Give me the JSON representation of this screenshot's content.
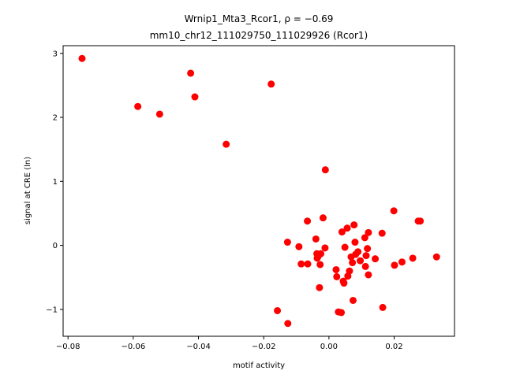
{
  "chart_data": {
    "type": "scatter",
    "title_line1": "Wrnip1_Mta3_Rcor1, ρ = −0.69",
    "title_line2": "mm10_chr12_111029750_111029926 (Rcor1)",
    "xlabel": "motif activity",
    "ylabel": "signal at CRE (ln)",
    "xlim": [
      -0.0815,
      0.0385
    ],
    "ylim": [
      -1.42,
      3.12
    ],
    "xticks": [
      -0.08,
      -0.06,
      -0.04,
      -0.02,
      0.0,
      0.02
    ],
    "xtick_labels": [
      "−0.08",
      "−0.06",
      "−0.04",
      "−0.02",
      "0.00",
      "0.02"
    ],
    "yticks": [
      -1,
      0,
      1,
      2,
      3
    ],
    "ytick_labels": [
      "−1",
      "0",
      "1",
      "2",
      "3"
    ],
    "marker_color": "#ff0000",
    "grid": false,
    "points": [
      {
        "x": -0.0757,
        "y": 2.92
      },
      {
        "x": -0.0586,
        "y": 2.17
      },
      {
        "x": -0.0519,
        "y": 2.05
      },
      {
        "x": -0.0424,
        "y": 2.69
      },
      {
        "x": -0.0411,
        "y": 2.32
      },
      {
        "x": -0.0315,
        "y": 1.58
      },
      {
        "x": -0.0177,
        "y": 2.52
      },
      {
        "x": -0.0011,
        "y": 1.18
      },
      {
        "x": -0.0158,
        "y": -1.02
      },
      {
        "x": -0.0126,
        "y": -1.22
      },
      {
        "x": -0.0127,
        "y": 0.05
      },
      {
        "x": -0.0092,
        "y": -0.02
      },
      {
        "x": -0.0085,
        "y": -0.29
      },
      {
        "x": -0.0066,
        "y": 0.38
      },
      {
        "x": -0.0065,
        "y": -0.29
      },
      {
        "x": -0.004,
        "y": 0.1
      },
      {
        "x": -0.0037,
        "y": -0.13
      },
      {
        "x": -0.0036,
        "y": -0.2
      },
      {
        "x": -0.0033,
        "y": -0.17
      },
      {
        "x": -0.0029,
        "y": -0.66
      },
      {
        "x": -0.0027,
        "y": -0.3
      },
      {
        "x": -0.0025,
        "y": -0.13
      },
      {
        "x": -0.0018,
        "y": 0.43
      },
      {
        "x": -0.0012,
        "y": -0.04
      },
      {
        "x": 0.0022,
        "y": -0.38
      },
      {
        "x": 0.0024,
        "y": -0.49
      },
      {
        "x": 0.0029,
        "y": -1.04
      },
      {
        "x": 0.0038,
        "y": -1.05
      },
      {
        "x": 0.004,
        "y": 0.21
      },
      {
        "x": 0.0044,
        "y": -0.56
      },
      {
        "x": 0.0046,
        "y": -0.59
      },
      {
        "x": 0.0049,
        "y": -0.03
      },
      {
        "x": 0.0056,
        "y": 0.27
      },
      {
        "x": 0.0058,
        "y": -0.48
      },
      {
        "x": 0.0063,
        "y": -0.4
      },
      {
        "x": 0.0068,
        "y": -0.18
      },
      {
        "x": 0.0072,
        "y": -0.27
      },
      {
        "x": 0.0074,
        "y": -0.86
      },
      {
        "x": 0.0077,
        "y": 0.32
      },
      {
        "x": 0.008,
        "y": 0.05
      },
      {
        "x": 0.0082,
        "y": -0.14
      },
      {
        "x": 0.0089,
        "y": -0.1
      },
      {
        "x": 0.0096,
        "y": -0.24
      },
      {
        "x": 0.011,
        "y": 0.12
      },
      {
        "x": 0.0112,
        "y": -0.33
      },
      {
        "x": 0.0114,
        "y": -0.16
      },
      {
        "x": 0.0118,
        "y": -0.05
      },
      {
        "x": 0.0121,
        "y": 0.2
      },
      {
        "x": 0.0121,
        "y": -0.46
      },
      {
        "x": 0.0142,
        "y": -0.21
      },
      {
        "x": 0.0163,
        "y": 0.19
      },
      {
        "x": 0.0165,
        "y": -0.97
      },
      {
        "x": 0.0199,
        "y": 0.54
      },
      {
        "x": 0.0201,
        "y": -0.31
      },
      {
        "x": 0.0224,
        "y": -0.26
      },
      {
        "x": 0.0257,
        "y": -0.2
      },
      {
        "x": 0.0274,
        "y": 0.38
      },
      {
        "x": 0.028,
        "y": 0.38
      },
      {
        "x": 0.033,
        "y": -0.18
      }
    ]
  }
}
